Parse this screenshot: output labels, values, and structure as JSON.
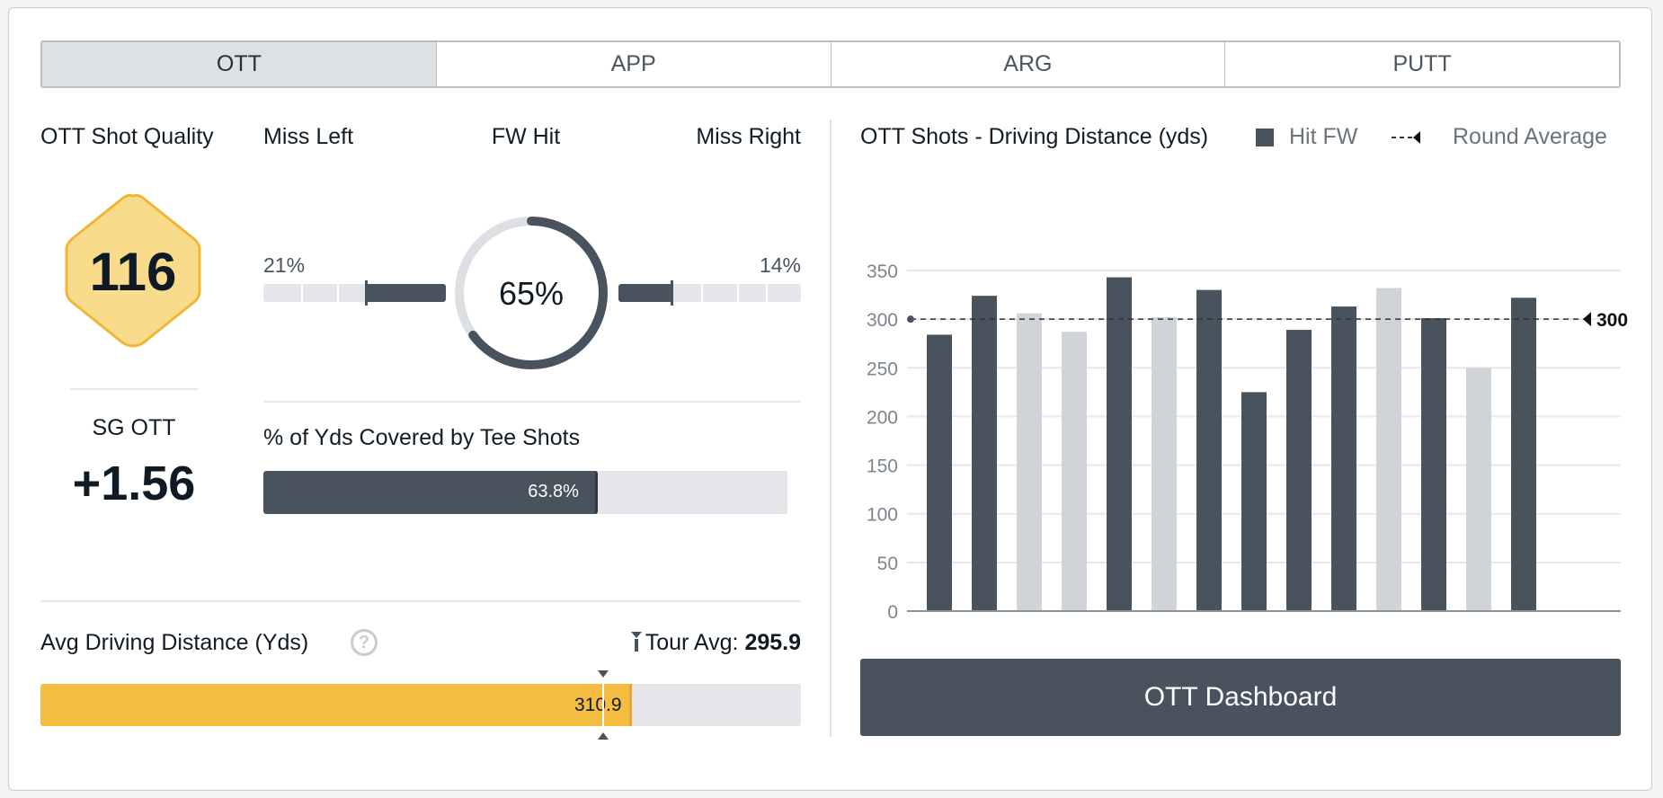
{
  "tabs": [
    {
      "label": "OTT",
      "active": true
    },
    {
      "label": "APP"
    },
    {
      "label": "ARG"
    },
    {
      "label": "PUTT"
    }
  ],
  "shot_quality": {
    "title": "OTT Shot Quality",
    "value": "116"
  },
  "sg": {
    "label": "SG OTT",
    "value": "+1.56"
  },
  "fairway": {
    "miss_left_label": "Miss Left",
    "fw_hit_label": "FW Hit",
    "miss_right_label": "Miss Right",
    "miss_left_pct": "21%",
    "fw_hit_pct": "65%",
    "miss_right_pct": "14%",
    "fw_hit_value": 0.65,
    "miss_left_value": 0.21,
    "miss_right_value": 0.14
  },
  "yds_covered": {
    "title": "% of Yds Covered by Tee Shots",
    "value_label": "63.8%",
    "value": 0.638
  },
  "avg_drive": {
    "title": "Avg Driving Distance (Yds)",
    "help_icon": "question-circle-icon",
    "tour_label": "Tour Avg:",
    "tour_value": "295.9",
    "value": "310.9",
    "value_num": 310.9,
    "tour_num": 295.9,
    "scale_max": 400
  },
  "chart_data": {
    "type": "bar",
    "title": "OTT Shots - Driving Distance (yds)",
    "legend": [
      {
        "label": "Hit FW",
        "color": "#48535e"
      },
      {
        "label": "Round Average",
        "style": "dashed"
      }
    ],
    "legend_placement": "top-right",
    "values": [
      284,
      324,
      306,
      287,
      343,
      302,
      330,
      225,
      289,
      313,
      332,
      301,
      250,
      322
    ],
    "hit_fw": [
      true,
      true,
      false,
      false,
      true,
      false,
      true,
      true,
      true,
      true,
      false,
      true,
      false,
      true
    ],
    "average": 300,
    "average_label": "300",
    "ylim": [
      0,
      350
    ],
    "yticks": [
      "0",
      "50",
      "100",
      "150",
      "200",
      "250",
      "300",
      "350"
    ],
    "grid": true,
    "colors": {
      "hit": "#48535e",
      "miss": "#d0d3d7"
    }
  },
  "dashboard_button": "OTT Dashboard"
}
